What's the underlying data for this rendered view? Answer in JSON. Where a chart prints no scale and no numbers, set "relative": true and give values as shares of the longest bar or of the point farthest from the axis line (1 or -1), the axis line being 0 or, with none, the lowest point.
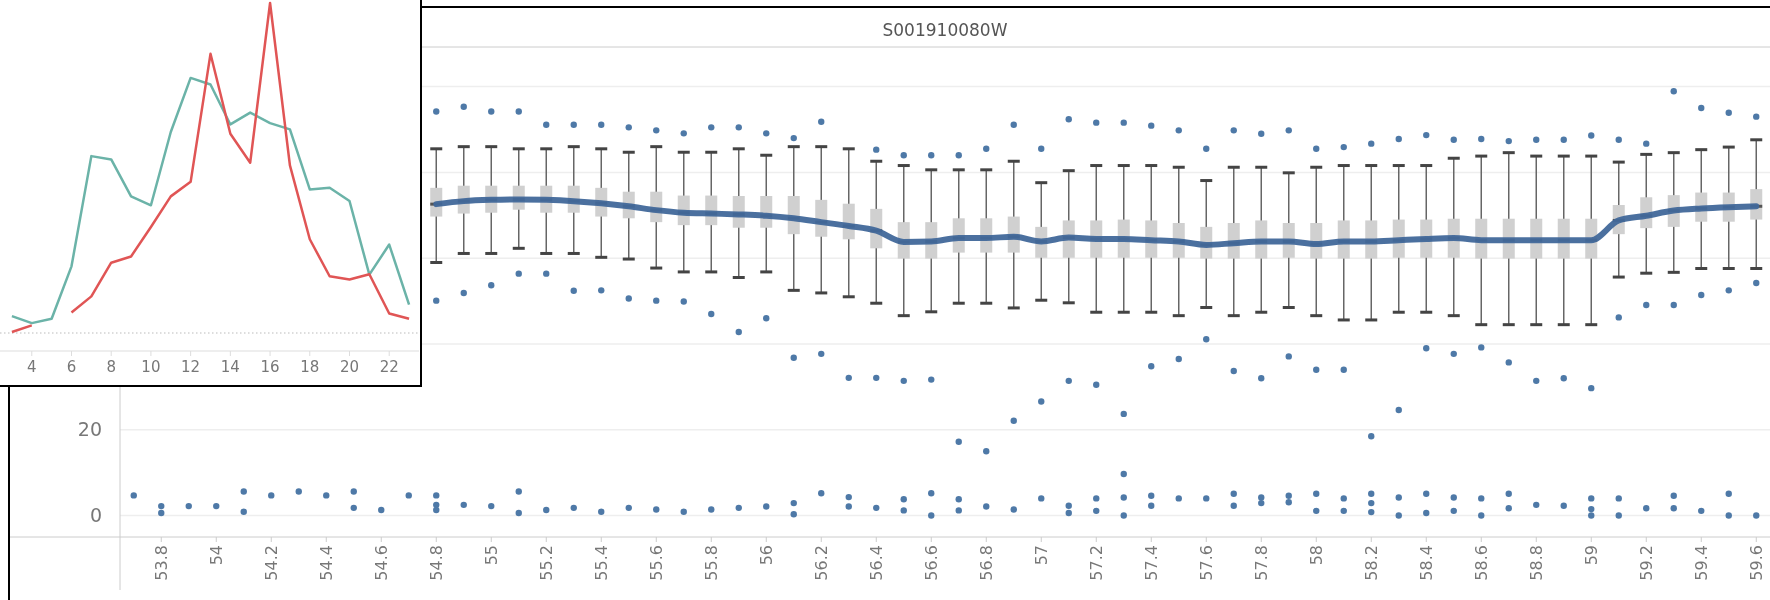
{
  "chart_data": [
    {
      "type": "line",
      "relative": true,
      "x": [
        3,
        4,
        5,
        6,
        7,
        8,
        9,
        10,
        11,
        12,
        13,
        14,
        15,
        16,
        17,
        18,
        19,
        20,
        21,
        22,
        23
      ],
      "xlim": [
        2.4,
        23.5
      ],
      "xticks": [
        4,
        6,
        8,
        10,
        12,
        14,
        16,
        18,
        20,
        22
      ],
      "series": [
        {
          "color": "#6bb3a8",
          "values": [
            0.051,
            0.03,
            0.043,
            0.202,
            0.536,
            0.526,
            0.414,
            0.387,
            0.609,
            0.773,
            0.753,
            0.632,
            0.668,
            0.636,
            0.617,
            0.435,
            0.44,
            0.4,
            0.177,
            0.268,
            0.086
          ]
        },
        {
          "color": "#e05555",
          "values": [
            0.003,
            0.023,
            null,
            0.062,
            0.111,
            0.213,
            0.232,
            0.321,
            0.414,
            0.458,
            0.846,
            0.604,
            0.516,
            1.0,
            0.508,
            0.284,
            0.172,
            0.162,
            0.178,
            0.059,
            0.043
          ]
        }
      ]
    },
    {
      "type": "box",
      "title": "S001910080W",
      "xlim": [
        53.65,
        59.65
      ],
      "xticks": [
        53.8,
        54,
        54.2,
        54.4,
        54.6,
        54.8,
        55,
        55.2,
        55.4,
        55.6,
        55.8,
        56,
        56.2,
        56.4,
        56.6,
        56.8,
        57,
        57.2,
        57.4,
        57.6,
        57.8,
        58,
        58.2,
        58.4,
        58.6,
        58.8,
        59,
        59.2,
        59.4,
        59.6
      ],
      "ylim": [
        -5,
        109
      ],
      "yticks": [
        0,
        20,
        {
          "value": 40,
          "label": null
        },
        {
          "value": 60,
          "label": null
        },
        {
          "value": 80,
          "label": null
        },
        {
          "value": 100,
          "label": null
        }
      ],
      "grid": "y",
      "series": [
        {
          "type": "box",
          "color": "#d0d0d0",
          "x": [
            54.8,
            54.9,
            55.0,
            55.1,
            55.2,
            55.3,
            55.4,
            55.5,
            55.6,
            55.7,
            55.8,
            55.9,
            56.0,
            56.1,
            56.2,
            56.3,
            56.4,
            56.5,
            56.6,
            56.7,
            56.8,
            56.9,
            57.0,
            57.1,
            57.2,
            57.3,
            57.4,
            57.5,
            57.6,
            57.7,
            57.8,
            57.9,
            58.0,
            58.1,
            58.2,
            58.3,
            58.4,
            58.5,
            58.6,
            58.7,
            58.8,
            58.9,
            59.0,
            59.1,
            59.2,
            59.3,
            59.4,
            59.5,
            59.6
          ],
          "boxes": [
            {
              "low": 59.0,
              "q1": 69.7,
              "median": 72.6,
              "q3": 76.4,
              "high": 85.5
            },
            {
              "low": 61.1,
              "q1": 70.4,
              "median": 73.3,
              "q3": 76.9,
              "high": 86.0
            },
            {
              "low": 61.1,
              "q1": 70.6,
              "median": 73.6,
              "q3": 76.9,
              "high": 86.0
            },
            {
              "low": 62.3,
              "q1": 71.3,
              "median": 73.7,
              "q3": 76.9,
              "high": 85.5
            },
            {
              "low": 61.1,
              "q1": 70.6,
              "median": 73.6,
              "q3": 76.9,
              "high": 85.5
            },
            {
              "low": 61.1,
              "q1": 70.6,
              "median": 73.3,
              "q3": 76.9,
              "high": 86.0
            },
            {
              "low": 60.2,
              "q1": 69.7,
              "median": 72.8,
              "q3": 76.4,
              "high": 85.5
            },
            {
              "low": 59.8,
              "q1": 69.3,
              "median": 72.1,
              "q3": 75.5,
              "high": 84.7
            },
            {
              "low": 57.7,
              "q1": 68.4,
              "median": 71.2,
              "q3": 75.5,
              "high": 86.0
            },
            {
              "low": 56.8,
              "q1": 67.7,
              "median": 70.6,
              "q3": 74.6,
              "high": 84.7
            },
            {
              "low": 56.8,
              "q1": 67.7,
              "median": 70.4,
              "q3": 74.6,
              "high": 84.7
            },
            {
              "low": 55.5,
              "q1": 67.1,
              "median": 70.2,
              "q3": 74.5,
              "high": 85.5
            },
            {
              "low": 56.8,
              "q1": 67.1,
              "median": 69.9,
              "q3": 74.5,
              "high": 84.0
            },
            {
              "low": 52.5,
              "q1": 65.6,
              "median": 69.3,
              "q3": 74.5,
              "high": 86.0
            },
            {
              "low": 51.9,
              "q1": 65.0,
              "median": 68.4,
              "q3": 73.6,
              "high": 86.0
            },
            {
              "low": 51.0,
              "q1": 64.4,
              "median": 67.5,
              "q3": 72.7,
              "high": 85.5
            },
            {
              "low": 49.5,
              "q1": 62.3,
              "median": 66.4,
              "q3": 71.5,
              "high": 82.6
            },
            {
              "low": 46.6,
              "q1": 59.9,
              "median": 63.8,
              "q3": 68.4,
              "high": 81.6
            },
            {
              "low": 47.5,
              "q1": 59.9,
              "median": 63.9,
              "q3": 68.4,
              "high": 80.6
            },
            {
              "low": 49.5,
              "q1": 61.3,
              "median": 64.7,
              "q3": 69.3,
              "high": 80.6
            },
            {
              "low": 49.5,
              "q1": 61.3,
              "median": 64.7,
              "q3": 69.3,
              "high": 80.6
            },
            {
              "low": 48.4,
              "q1": 61.3,
              "median": 65.0,
              "q3": 69.7,
              "high": 82.6
            },
            {
              "low": 50.2,
              "q1": 60.1,
              "median": 63.9,
              "q3": 67.3,
              "high": 77.6
            },
            {
              "low": 49.6,
              "q1": 60.1,
              "median": 64.8,
              "q3": 68.8,
              "high": 80.4
            },
            {
              "low": 47.4,
              "q1": 60.1,
              "median": 64.5,
              "q3": 68.8,
              "high": 81.6
            },
            {
              "low": 47.4,
              "q1": 60.1,
              "median": 64.5,
              "q3": 69.0,
              "high": 81.6
            },
            {
              "low": 47.4,
              "q1": 60.1,
              "median": 64.2,
              "q3": 68.8,
              "high": 81.6
            },
            {
              "low": 46.6,
              "q1": 60.1,
              "median": 63.9,
              "q3": 68.2,
              "high": 81.2
            },
            {
              "low": 48.5,
              "q1": 59.9,
              "median": 63.1,
              "q3": 67.3,
              "high": 78.1
            },
            {
              "low": 46.6,
              "q1": 59.9,
              "median": 63.5,
              "q3": 68.2,
              "high": 81.2
            },
            {
              "low": 47.4,
              "q1": 59.9,
              "median": 63.9,
              "q3": 68.8,
              "high": 81.2
            },
            {
              "low": 48.5,
              "q1": 60.1,
              "median": 63.9,
              "q3": 68.2,
              "high": 79.9
            },
            {
              "low": 46.6,
              "q1": 59.9,
              "median": 63.3,
              "q3": 68.2,
              "high": 81.2
            },
            {
              "low": 45.6,
              "q1": 59.9,
              "median": 63.9,
              "q3": 68.8,
              "high": 81.6
            },
            {
              "low": 45.6,
              "q1": 59.9,
              "median": 63.9,
              "q3": 68.8,
              "high": 81.6
            },
            {
              "low": 47.4,
              "q1": 60.1,
              "median": 64.2,
              "q3": 69.0,
              "high": 81.6
            },
            {
              "low": 47.4,
              "q1": 60.1,
              "median": 64.5,
              "q3": 69.0,
              "high": 81.6
            },
            {
              "low": 46.6,
              "q1": 60.1,
              "median": 64.7,
              "q3": 69.2,
              "high": 83.3
            },
            {
              "low": 44.5,
              "q1": 59.9,
              "median": 64.2,
              "q3": 69.2,
              "high": 83.8
            },
            {
              "low": 44.5,
              "q1": 59.9,
              "median": 64.2,
              "q3": 69.2,
              "high": 84.6
            },
            {
              "low": 44.5,
              "q1": 59.9,
              "median": 64.2,
              "q3": 69.2,
              "high": 83.8
            },
            {
              "low": 44.5,
              "q1": 59.9,
              "median": 64.2,
              "q3": 69.2,
              "high": 83.8
            },
            {
              "low": 44.5,
              "q1": 59.9,
              "median": 64.2,
              "q3": 69.2,
              "high": 83.8
            },
            {
              "low": 55.6,
              "q1": 65.6,
              "median": 68.8,
              "q3": 72.4,
              "high": 82.4
            },
            {
              "low": 56.5,
              "q1": 67.0,
              "median": 69.9,
              "q3": 74.2,
              "high": 84.2
            },
            {
              "low": 56.7,
              "q1": 67.3,
              "median": 71.1,
              "q3": 74.7,
              "high": 84.6
            },
            {
              "low": 57.6,
              "q1": 68.5,
              "median": 71.6,
              "q3": 75.3,
              "high": 85.3
            },
            {
              "low": 57.6,
              "q1": 68.5,
              "median": 71.9,
              "q3": 75.3,
              "high": 85.9
            },
            {
              "low": 57.6,
              "q1": 69.0,
              "median": 72.1,
              "q3": 76.1,
              "high": 87.6
            }
          ]
        },
        {
          "type": "scatter",
          "color": "#4e79a7",
          "marker": "circle",
          "x": [
            53.7,
            53.8,
            53.8,
            53.9,
            54.0,
            54.1,
            54.1,
            54.2,
            54.3,
            54.4,
            54.5,
            54.5,
            54.6,
            54.7,
            54.8,
            54.8,
            54.8,
            54.8,
            54.8,
            54.9,
            54.9,
            54.9,
            55.0,
            55.0,
            55.0,
            55.1,
            55.1,
            55.1,
            55.1,
            55.2,
            55.2,
            55.2,
            55.3,
            55.3,
            55.3,
            55.4,
            55.4,
            55.4,
            55.5,
            55.5,
            55.5,
            55.6,
            55.6,
            55.6,
            55.7,
            55.7,
            55.7,
            55.8,
            55.8,
            55.8,
            55.9,
            55.9,
            55.9,
            56.0,
            56.0,
            56.0,
            56.1,
            56.1,
            56.1,
            56.1,
            56.2,
            56.2,
            56.2,
            56.3,
            56.3,
            56.3,
            56.4,
            56.4,
            56.4,
            56.5,
            56.5,
            56.5,
            56.5,
            56.6,
            56.6,
            56.6,
            56.6,
            56.7,
            56.7,
            56.7,
            56.7,
            56.8,
            56.8,
            56.8,
            56.9,
            56.9,
            56.9,
            57.0,
            57.0,
            57.0,
            57.1,
            57.1,
            57.1,
            57.1,
            57.2,
            57.2,
            57.2,
            57.2,
            57.3,
            57.3,
            57.3,
            57.3,
            57.3,
            57.4,
            57.4,
            57.4,
            57.4,
            57.5,
            57.5,
            57.5,
            57.6,
            57.6,
            57.6,
            57.7,
            57.7,
            57.7,
            57.7,
            57.8,
            57.8,
            57.8,
            57.8,
            57.9,
            57.9,
            57.9,
            57.9,
            58.0,
            58.0,
            58.0,
            58.0,
            58.1,
            58.1,
            58.1,
            58.1,
            58.2,
            58.2,
            58.2,
            58.2,
            58.2,
            58.3,
            58.3,
            58.3,
            58.3,
            58.4,
            58.4,
            58.4,
            58.4,
            58.5,
            58.5,
            58.5,
            58.5,
            58.6,
            58.6,
            58.6,
            58.6,
            58.7,
            58.7,
            58.7,
            58.7,
            58.8,
            58.8,
            58.8,
            58.9,
            58.9,
            58.9,
            59.0,
            59.0,
            59.0,
            59.0,
            59.0,
            59.1,
            59.1,
            59.1,
            59.1,
            59.2,
            59.2,
            59.2,
            59.3,
            59.3,
            59.3,
            59.3,
            59.4,
            59.4,
            59.4,
            59.5,
            59.5,
            59.5,
            59.5,
            59.6,
            59.6,
            59.6
          ],
          "values": [
            4.7,
            2.2,
            0.6,
            2.2,
            2.2,
            5.6,
            0.9,
            4.7,
            5.6,
            4.7,
            5.6,
            1.8,
            1.3,
            4.7,
            94.2,
            50.1,
            4.7,
            2.5,
            1.3,
            95.3,
            51.9,
            2.5,
            94.2,
            53.7,
            2.2,
            94.2,
            56.4,
            5.6,
            0.6,
            91.1,
            56.4,
            1.3,
            91.1,
            52.4,
            1.8,
            91.1,
            52.5,
            0.9,
            90.5,
            50.6,
            1.8,
            89.8,
            50.1,
            1.4,
            89.1,
            49.9,
            0.9,
            90.5,
            47.0,
            1.4,
            90.5,
            42.8,
            1.8,
            89.1,
            46.0,
            2.1,
            88.0,
            36.8,
            2.9,
            0.3,
            91.8,
            37.7,
            5.2,
            32.1,
            4.3,
            2.1,
            85.3,
            32.1,
            1.8,
            84.0,
            31.4,
            3.8,
            1.2,
            84.0,
            31.7,
            5.2,
            0,
            84.0,
            17.2,
            3.8,
            1.2,
            85.5,
            15.0,
            2.1,
            91.1,
            22.1,
            1.4,
            85.5,
            26.6,
            4.0,
            92.4,
            31.4,
            2.3,
            0.6,
            91.6,
            30.5,
            4.0,
            1.1,
            91.6,
            23.7,
            9.7,
            4.2,
            0,
            90.9,
            34.8,
            4.6,
            2.3,
            89.8,
            36.5,
            4.0,
            85.5,
            41.1,
            4.0,
            89.8,
            33.7,
            5.1,
            2.3,
            89.0,
            32.0,
            4.2,
            2.9,
            89.8,
            37.1,
            4.6,
            3.1,
            85.5,
            34.0,
            5.1,
            1.1,
            85.9,
            34.0,
            4.0,
            1.1,
            86.7,
            18.5,
            5.1,
            2.9,
            0.8,
            87.8,
            24.6,
            4.2,
            0,
            88.7,
            39.0,
            5.1,
            0.6,
            87.6,
            37.7,
            4.2,
            1.1,
            87.8,
            39.2,
            4.0,
            0,
            87.3,
            35.7,
            5.1,
            1.7,
            87.6,
            31.4,
            2.5,
            87.6,
            32.0,
            2.3,
            88.6,
            29.7,
            4.0,
            1.5,
            0,
            87.6,
            46.2,
            4.0,
            0,
            86.7,
            49.1,
            1.7,
            98.9,
            49.1,
            4.6,
            1.7,
            95.0,
            51.4,
            1.1,
            93.9,
            52.5,
            5.1,
            0,
            93.0,
            54.2,
            0
          ]
        },
        {
          "type": "line",
          "color": "#41689a",
          "x": [
            54.8,
            54.9,
            55.0,
            55.1,
            55.2,
            55.3,
            55.4,
            55.5,
            55.6,
            55.7,
            55.8,
            55.9,
            56.0,
            56.1,
            56.2,
            56.3,
            56.4,
            56.5,
            56.6,
            56.7,
            56.8,
            56.9,
            57.0,
            57.1,
            57.2,
            57.3,
            57.4,
            57.5,
            57.6,
            57.7,
            57.8,
            57.9,
            58.0,
            58.1,
            58.2,
            58.3,
            58.4,
            58.5,
            58.6,
            58.7,
            58.8,
            58.9,
            59.0,
            59.1,
            59.2,
            59.3,
            59.4,
            59.5,
            59.6
          ],
          "values": [
            72.6,
            73.3,
            73.6,
            73.7,
            73.6,
            73.3,
            72.8,
            72.1,
            71.2,
            70.6,
            70.4,
            70.2,
            69.9,
            69.3,
            68.4,
            67.5,
            66.4,
            63.8,
            63.9,
            64.7,
            64.7,
            65.0,
            63.9,
            64.8,
            64.5,
            64.5,
            64.2,
            63.9,
            63.1,
            63.5,
            63.9,
            63.9,
            63.3,
            63.9,
            63.9,
            64.2,
            64.5,
            64.7,
            64.2,
            64.2,
            64.2,
            64.2,
            64.2,
            68.8,
            69.9,
            71.1,
            71.6,
            71.9,
            72.1
          ]
        }
      ]
    }
  ]
}
